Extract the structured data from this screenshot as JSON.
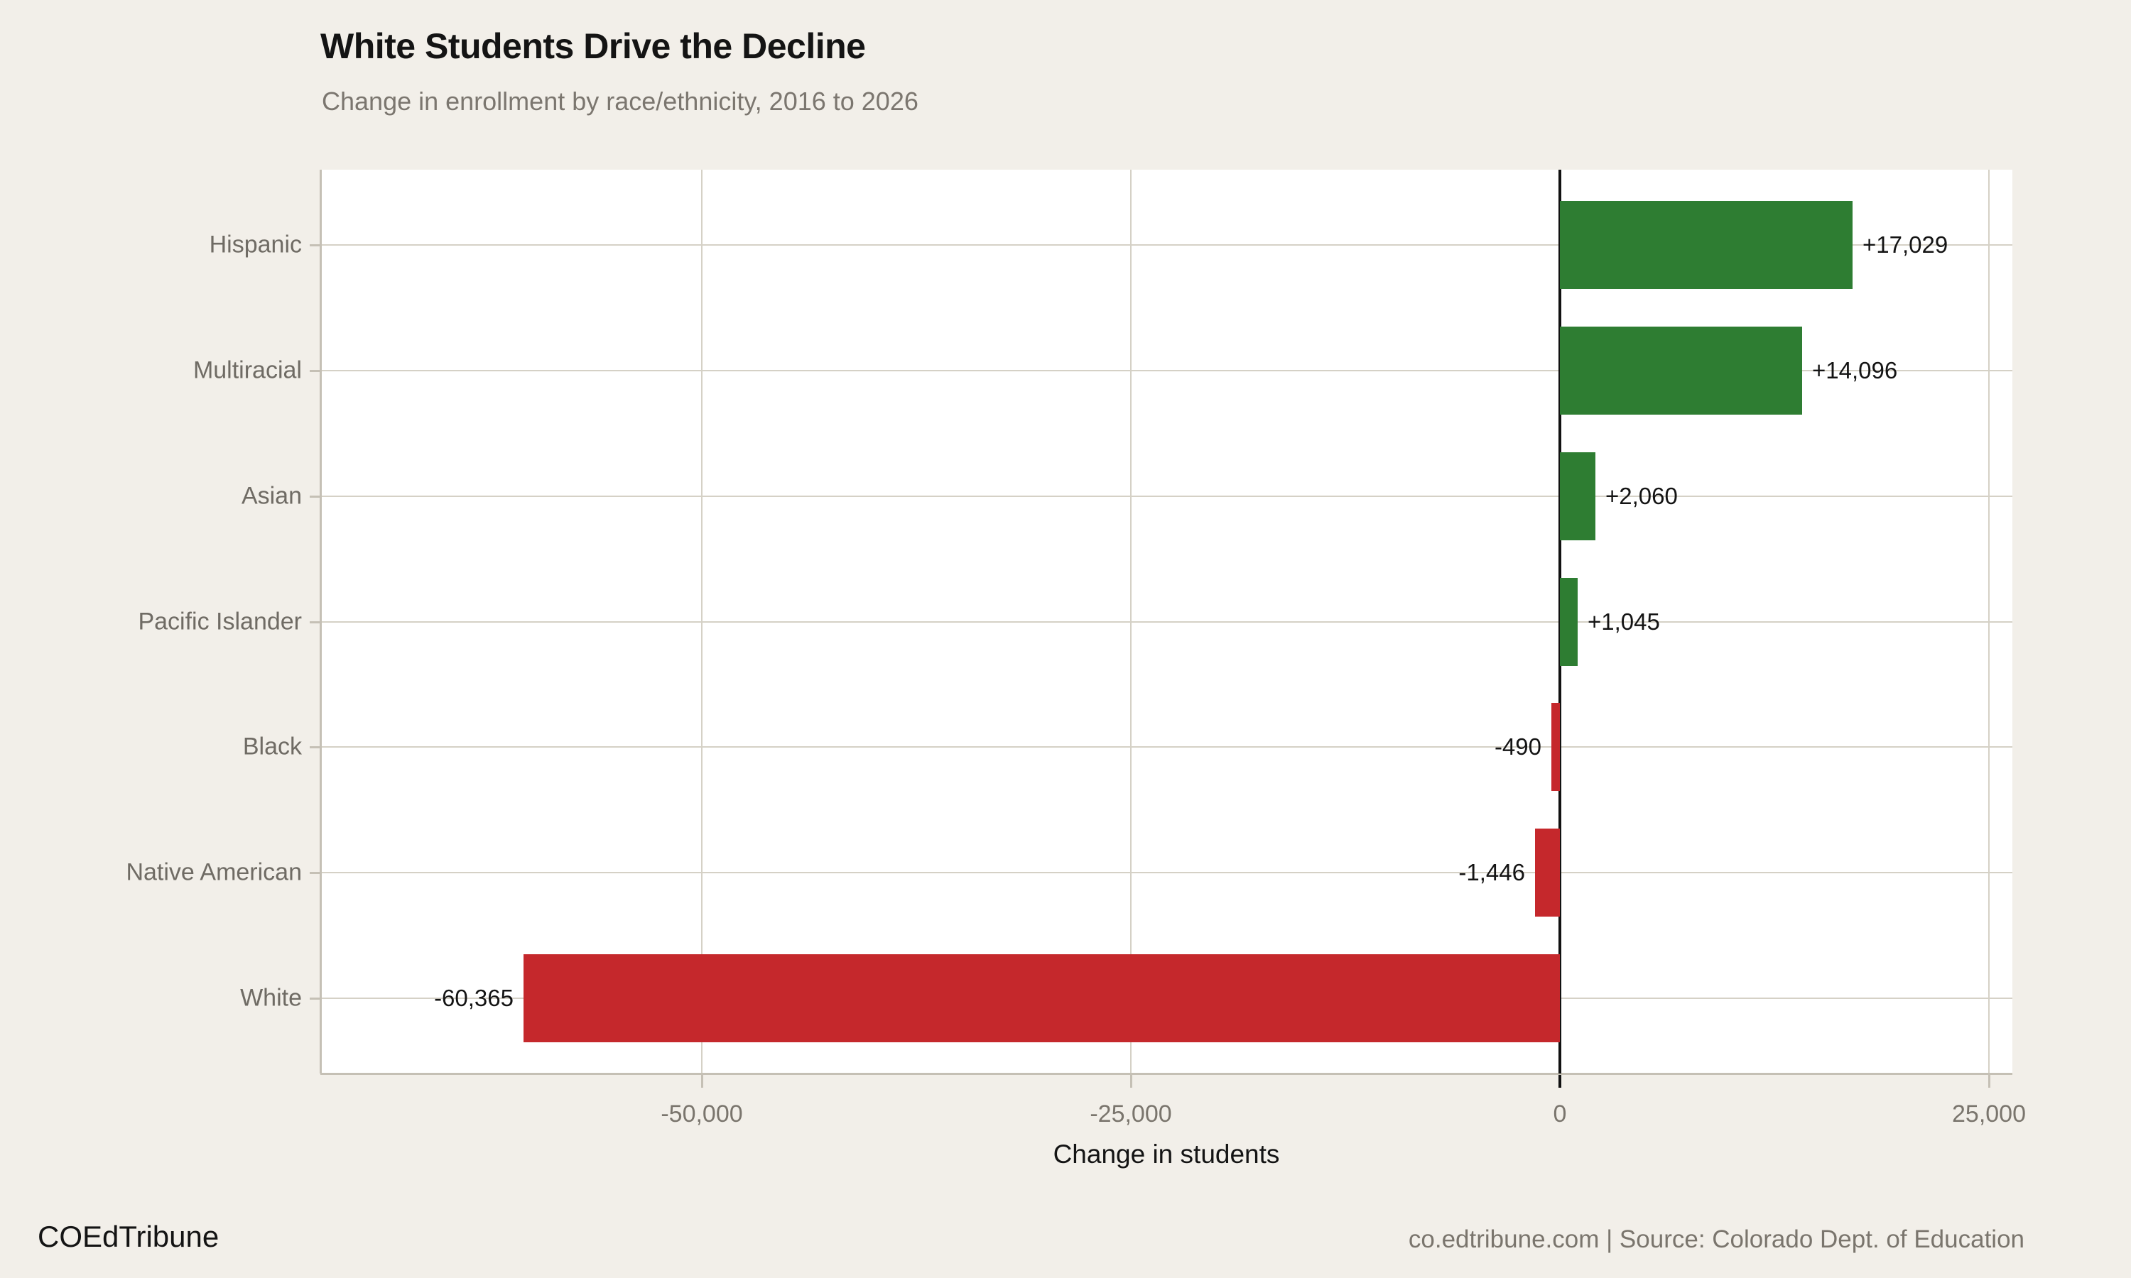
{
  "title": "White Students Drive the Decline",
  "subtitle": "Change in enrollment by race/ethnicity, 2016 to 2026",
  "footer": {
    "brand": "COEdTribune",
    "attribution": "co.edtribune.com | Source: Colorado Dept. of Education"
  },
  "chart_data": {
    "type": "bar",
    "orientation": "horizontal",
    "title": "White Students Drive the Decline",
    "subtitle": "Change in enrollment by race/ethnicity, 2016 to 2026",
    "xlabel": "Change in students",
    "categories": [
      "Hispanic",
      "Multiracial",
      "Asian",
      "Pacific Islander",
      "Black",
      "Native American",
      "White"
    ],
    "values": [
      17029,
      14096,
      2060,
      1045,
      -490,
      -1446,
      -60365
    ],
    "bar_labels": [
      "+17,029",
      "+14,096",
      "+2,060",
      "+1,045",
      "-490",
      "-1,446",
      "-60,365"
    ],
    "x_ticks": [
      -50000,
      -25000,
      0,
      25000
    ],
    "x_tick_labels": [
      "-50,000",
      "-25,000",
      "0",
      "25,000"
    ],
    "xlim": [
      -72200,
      26350
    ],
    "grid": true,
    "legend": false,
    "colors": {
      "positive": "#2e7d32",
      "negative": "#c5282c",
      "background": "#f2efe9",
      "panel": "#ffffff",
      "gridline": "#d5d1c6",
      "axis_line": "#c5c0b5",
      "zero_line": "#111111",
      "label_text": "#6f6b64"
    }
  }
}
